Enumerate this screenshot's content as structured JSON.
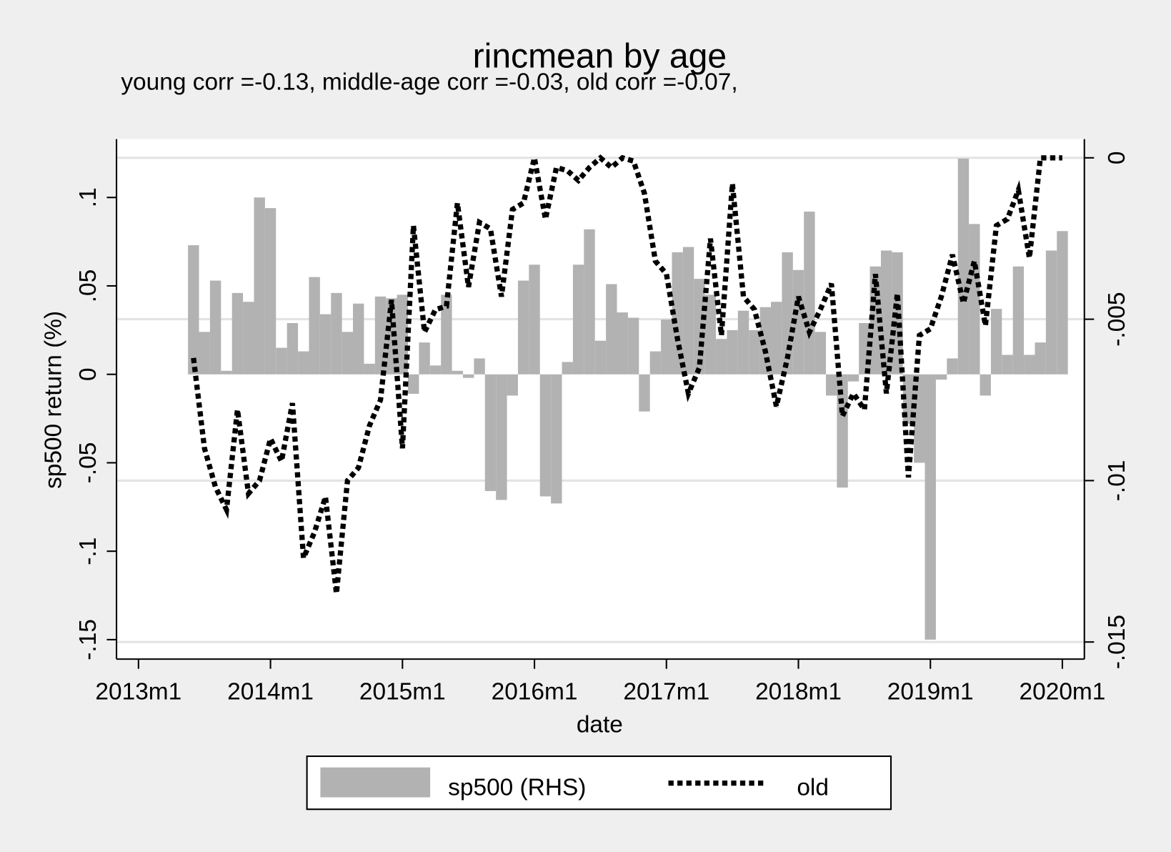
{
  "chart_data": {
    "type": "bar",
    "title": "rincmean by age",
    "subtitle": "young corr =-0.13, middle-age corr =-0.03, old corr =-0.07,",
    "x_label": "date",
    "y_label": "sp500 return (%)",
    "x": [
      "2013m6",
      "2013m7",
      "2013m8",
      "2013m9",
      "2013m10",
      "2013m11",
      "2013m12",
      "2014m1",
      "2014m2",
      "2014m3",
      "2014m4",
      "2014m5",
      "2014m6",
      "2014m7",
      "2014m8",
      "2014m9",
      "2014m10",
      "2014m11",
      "2014m12",
      "2015m1",
      "2015m2",
      "2015m3",
      "2015m4",
      "2015m5",
      "2015m6",
      "2015m7",
      "2015m8",
      "2015m9",
      "2015m10",
      "2015m11",
      "2015m12",
      "2016m1",
      "2016m2",
      "2016m3",
      "2016m4",
      "2016m5",
      "2016m6",
      "2016m7",
      "2016m8",
      "2016m9",
      "2016m10",
      "2016m11",
      "2016m12",
      "2017m1",
      "2017m2",
      "2017m3",
      "2017m4",
      "2017m5",
      "2017m6",
      "2017m7",
      "2017m8",
      "2017m9",
      "2017m10",
      "2017m11",
      "2017m12",
      "2018m1",
      "2018m2",
      "2018m3",
      "2018m4",
      "2018m5",
      "2018m6",
      "2018m7",
      "2018m8",
      "2018m9",
      "2018m10",
      "2018m11",
      "2018m12",
      "2019m1",
      "2019m2",
      "2019m3",
      "2019m4",
      "2019m5",
      "2019m6",
      "2019m7",
      "2019m8",
      "2019m9",
      "2019m10",
      "2019m11",
      "2019m12",
      "2020m1"
    ],
    "series": [
      {
        "name": "sp500 (RHS)",
        "type": "bar",
        "axis": "y",
        "color": "#b2b2b2",
        "values": [
          0.073,
          0.024,
          0.053,
          0.002,
          0.046,
          0.041,
          0.1,
          0.094,
          0.015,
          0.029,
          0.013,
          0.055,
          0.034,
          0.046,
          0.024,
          0.04,
          0.006,
          0.044,
          0.043,
          0.045,
          -0.011,
          0.018,
          0.005,
          0.045,
          0.002,
          -0.002,
          0.009,
          -0.066,
          -0.071,
          -0.012,
          0.053,
          0.062,
          -0.069,
          -0.073,
          0.007,
          0.062,
          0.082,
          0.019,
          0.051,
          0.035,
          0.032,
          -0.021,
          0.013,
          0.031,
          0.069,
          0.072,
          0.054,
          0.045,
          0.02,
          0.025,
          0.036,
          0.025,
          0.038,
          0.041,
          0.069,
          0.059,
          0.092,
          0.024,
          -0.012,
          -0.064,
          -0.004,
          0.029,
          0.061,
          0.07,
          0.069,
          -0.028,
          -0.05,
          -0.15,
          -0.003,
          0.009,
          0.122,
          0.085,
          -0.012,
          0.037,
          0.011,
          0.061,
          0.011,
          0.018,
          0.07,
          0.081
        ]
      },
      {
        "name": "old",
        "type": "line",
        "axis": "y2",
        "color": "#000000",
        "linestyle": "dot",
        "values": [
          -0.0062,
          -0.009,
          -0.0102,
          -0.0109,
          -0.0078,
          -0.0104,
          -0.01,
          -0.0087,
          -0.0094,
          -0.0076,
          -0.0124,
          -0.0116,
          -0.0105,
          -0.0135,
          -0.01,
          -0.0096,
          -0.0083,
          -0.0075,
          -0.0044,
          -0.009,
          -0.0021,
          -0.0054,
          -0.0047,
          -0.0046,
          -0.0014,
          -0.004,
          -0.002,
          -0.0022,
          -0.0043,
          -0.0016,
          -0.0014,
          0.0,
          -0.0019,
          -0.0003,
          -0.0004,
          -0.0007,
          -0.0003,
          0.0,
          -0.0003,
          0.0,
          -0.0001,
          -0.0011,
          -0.0032,
          -0.0036,
          -0.0056,
          -0.0073,
          -0.0065,
          -0.0025,
          -0.0055,
          -0.0008,
          -0.0043,
          -0.0047,
          -0.006,
          -0.0077,
          -0.0062,
          -0.0043,
          -0.0054,
          -0.0047,
          -0.0039,
          -0.008,
          -0.0073,
          -0.0078,
          -0.0036,
          -0.0073,
          -0.0042,
          -0.0099,
          -0.0055,
          -0.0053,
          -0.0043,
          -0.003,
          -0.0045,
          -0.0032,
          -0.0052,
          -0.0021,
          -0.0019,
          -0.001,
          -0.0031,
          0.0,
          0.0,
          0.0
        ]
      }
    ],
    "xlim": [
      "2012m11",
      "2020m3"
    ],
    "xticks": [
      "2013m1",
      "2014m1",
      "2015m1",
      "2016m1",
      "2017m1",
      "2018m1",
      "2019m1",
      "2020m1"
    ],
    "ylim": [
      -0.161,
      0.133
    ],
    "yticks": [
      {
        "value": -0.15,
        "label": "-.15"
      },
      {
        "value": -0.1,
        "label": "-.1"
      },
      {
        "value": -0.05,
        "label": "-.05"
      },
      0,
      {
        "value": 0.05,
        "label": ".05"
      },
      {
        "value": 0.1,
        "label": ".1"
      }
    ],
    "y2lim": [
      -0.01553,
      0.00058
    ],
    "y2ticks": [
      {
        "value": -0.015,
        "label": "-.015"
      },
      {
        "value": -0.01,
        "label": "-.01"
      },
      {
        "value": -0.005,
        "label": "-.005"
      },
      0
    ],
    "grid": "y2",
    "legend": "bottom"
  }
}
